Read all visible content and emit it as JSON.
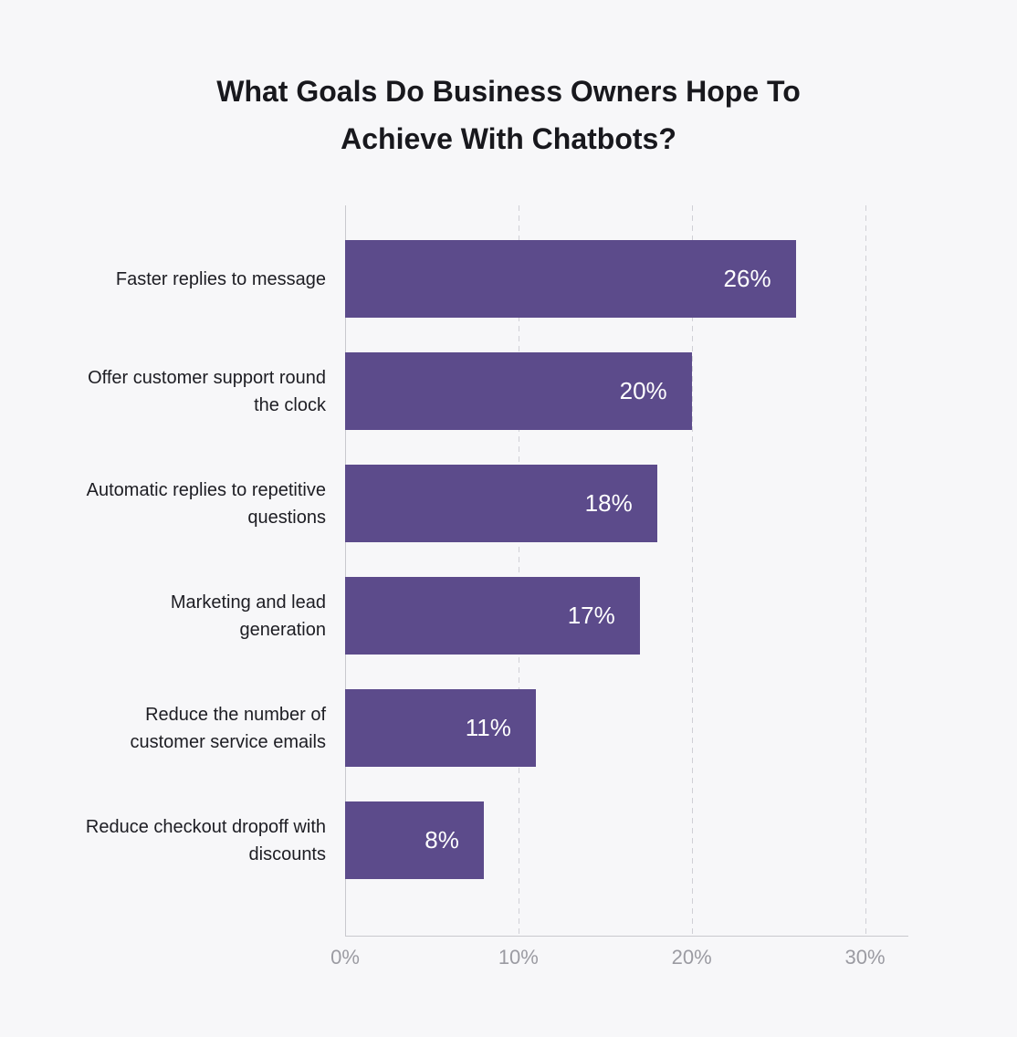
{
  "title": {
    "line1": "What Goals Do Business Owners Hope To",
    "line2": "Achieve With Chatbots?"
  },
  "chart_data": {
    "type": "bar",
    "orientation": "horizontal",
    "title": "What Goals Do Business Owners Hope To Achieve With Chatbots?",
    "categories": [
      "Faster replies to message",
      "Offer customer support round the clock",
      "Automatic replies to repetitive questions",
      "Marketing and lead generation",
      "Reduce the number of customer service emails",
      "Reduce checkout dropoff with discounts"
    ],
    "values": [
      26,
      20,
      18,
      17,
      11,
      8
    ],
    "value_labels": [
      "26%",
      "20%",
      "18%",
      "17%",
      "11%",
      "8%"
    ],
    "xlabel": "",
    "ylabel": "",
    "x_tick_labels": [
      "0%",
      "10%",
      "20%",
      "30%"
    ],
    "x_tick_values": [
      0,
      10,
      20,
      30
    ],
    "xlim": [
      0,
      32.5
    ],
    "grid": "vertical-dashed",
    "legend_position": "none",
    "colors": {
      "bar": "#5c4b8b",
      "background": "#f7f7f9",
      "title_text": "#18181d",
      "category_text": "#1d1d23",
      "value_text": "#ffffff",
      "tick_text": "#9b9ba2",
      "axis_line": "#c9c9ce",
      "gridline": "#d0d0d6"
    }
  }
}
